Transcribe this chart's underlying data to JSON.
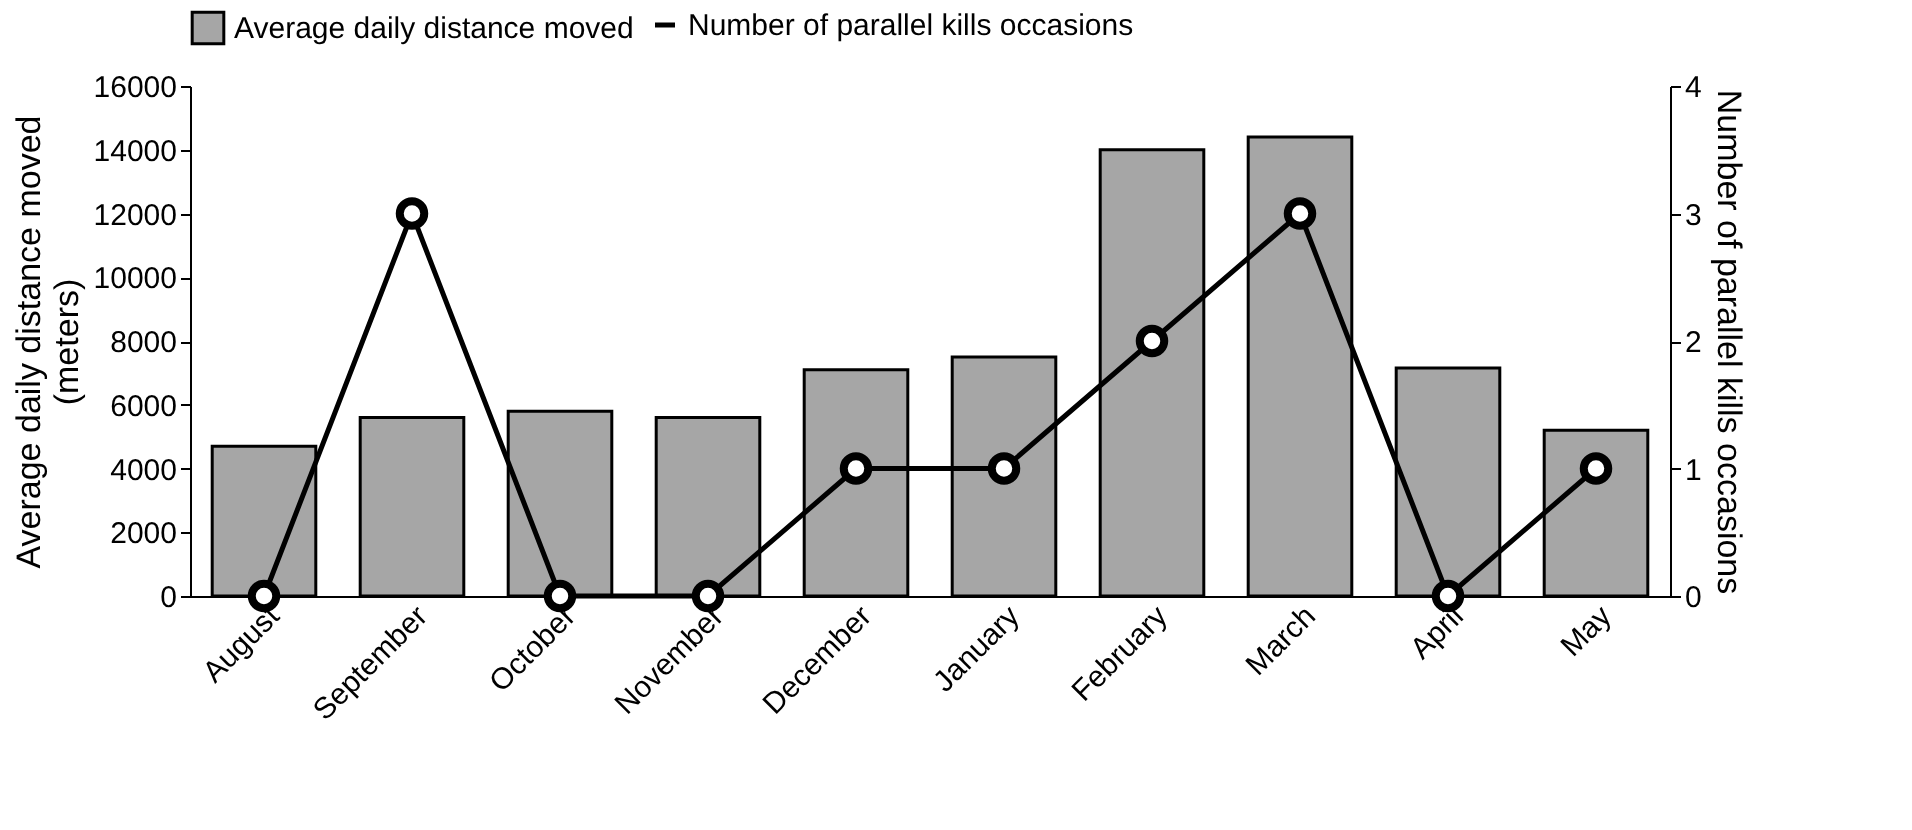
{
  "chart_data": {
    "type": "bar",
    "categories": [
      "August",
      "September",
      "October",
      "November",
      "December",
      "January",
      "February",
      "March",
      "April",
      "May"
    ],
    "ylabel": "Average daily distance moved (meters)",
    "y2label": "Number of parallel kills occasions",
    "series": [
      {
        "name": "Average daily distance moved",
        "color": "#a6a6a6",
        "values": [
          4700,
          5600,
          5800,
          5600,
          7100,
          7500,
          14000,
          14400,
          7150,
          5200
        ]
      },
      {
        "name": "Number of parallel kills occasions",
        "type": "line",
        "axis": "y2",
        "color": "#000000",
        "marker": "circle",
        "values": [
          0,
          3,
          0,
          0,
          1,
          1,
          2,
          3,
          0,
          1
        ]
      }
    ],
    "ylim": [
      0,
      16000
    ],
    "yticks": [
      0,
      2000,
      4000,
      6000,
      8000,
      10000,
      12000,
      14000,
      16000
    ],
    "y2lim": [
      0,
      4
    ],
    "y2ticks": [
      0,
      1,
      2,
      3,
      4
    ],
    "grid": false,
    "legend": "top"
  }
}
